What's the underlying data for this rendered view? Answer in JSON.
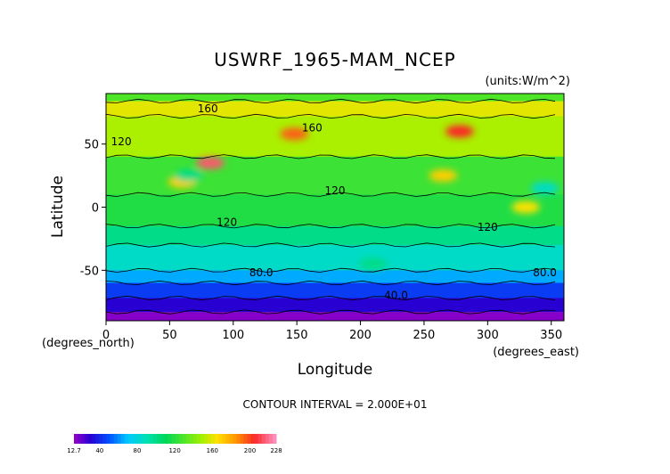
{
  "chart_data": {
    "type": "heatmap",
    "title": "USWRF_1965-MAM_NCEP",
    "units": "(units:W/m^2)",
    "xlabel": "Longitude",
    "ylabel": "Latitude",
    "x_unit_label": "(degrees_east)",
    "y_unit_label": "(degrees_north)",
    "xlim": [
      0,
      360
    ],
    "ylim": [
      -90,
      90
    ],
    "xticks": [
      0,
      50,
      100,
      150,
      200,
      250,
      300,
      350
    ],
    "yticks": [
      -50,
      0,
      50
    ],
    "contour_interval_text": "CONTOUR INTERVAL = 2.000E+01",
    "contour_labels": [
      {
        "text": "160",
        "lon": 80,
        "lat": 78
      },
      {
        "text": "160",
        "lon": 162,
        "lat": 63
      },
      {
        "text": "120",
        "lon": 12,
        "lat": 52
      },
      {
        "text": "120",
        "lon": 180,
        "lat": 13
      },
      {
        "text": "120",
        "lon": 95,
        "lat": -12
      },
      {
        "text": "120",
        "lon": 300,
        "lat": -16
      },
      {
        "text": "80.0",
        "lon": 122,
        "lat": -52
      },
      {
        "text": "80.0",
        "lon": 345,
        "lat": -52
      },
      {
        "text": "40.0",
        "lon": 228,
        "lat": -70
      }
    ],
    "value_range": [
      12.7,
      228
    ],
    "colorbar_ticks": [
      "12.7",
      "40",
      "80",
      "120",
      "160",
      "200",
      "228"
    ],
    "latitude_bands_W_m2": [
      {
        "lat_from": 90,
        "lat_to": 84,
        "value": 130
      },
      {
        "lat_from": 84,
        "lat_to": 72,
        "value": 160
      },
      {
        "lat_from": 72,
        "lat_to": 40,
        "value": 150
      },
      {
        "lat_from": 40,
        "lat_to": 10,
        "value": 125
      },
      {
        "lat_from": 10,
        "lat_to": -15,
        "value": 118
      },
      {
        "lat_from": -15,
        "lat_to": -30,
        "value": 100
      },
      {
        "lat_from": -30,
        "lat_to": -50,
        "value": 85
      },
      {
        "lat_from": -50,
        "lat_to": -60,
        "value": 65
      },
      {
        "lat_from": -60,
        "lat_to": -72,
        "value": 45
      },
      {
        "lat_from": -72,
        "lat_to": -83,
        "value": 30
      },
      {
        "lat_from": -83,
        "lat_to": -90,
        "value": 15
      }
    ],
    "hotspots": [
      {
        "lon": 82,
        "lat": 35,
        "value": 215
      },
      {
        "lon": 278,
        "lat": 60,
        "value": 205
      },
      {
        "lon": 148,
        "lat": 58,
        "value": 195
      },
      {
        "lon": 265,
        "lat": 25,
        "value": 170
      },
      {
        "lon": 330,
        "lat": 0,
        "value": 165
      },
      {
        "lon": 60,
        "lat": 20,
        "value": 170
      },
      {
        "lon": 65,
        "lat": 25,
        "value": 100
      },
      {
        "lon": 345,
        "lat": 15,
        "value": 85
      },
      {
        "lon": 210,
        "lat": -45,
        "value": 100
      }
    ]
  }
}
